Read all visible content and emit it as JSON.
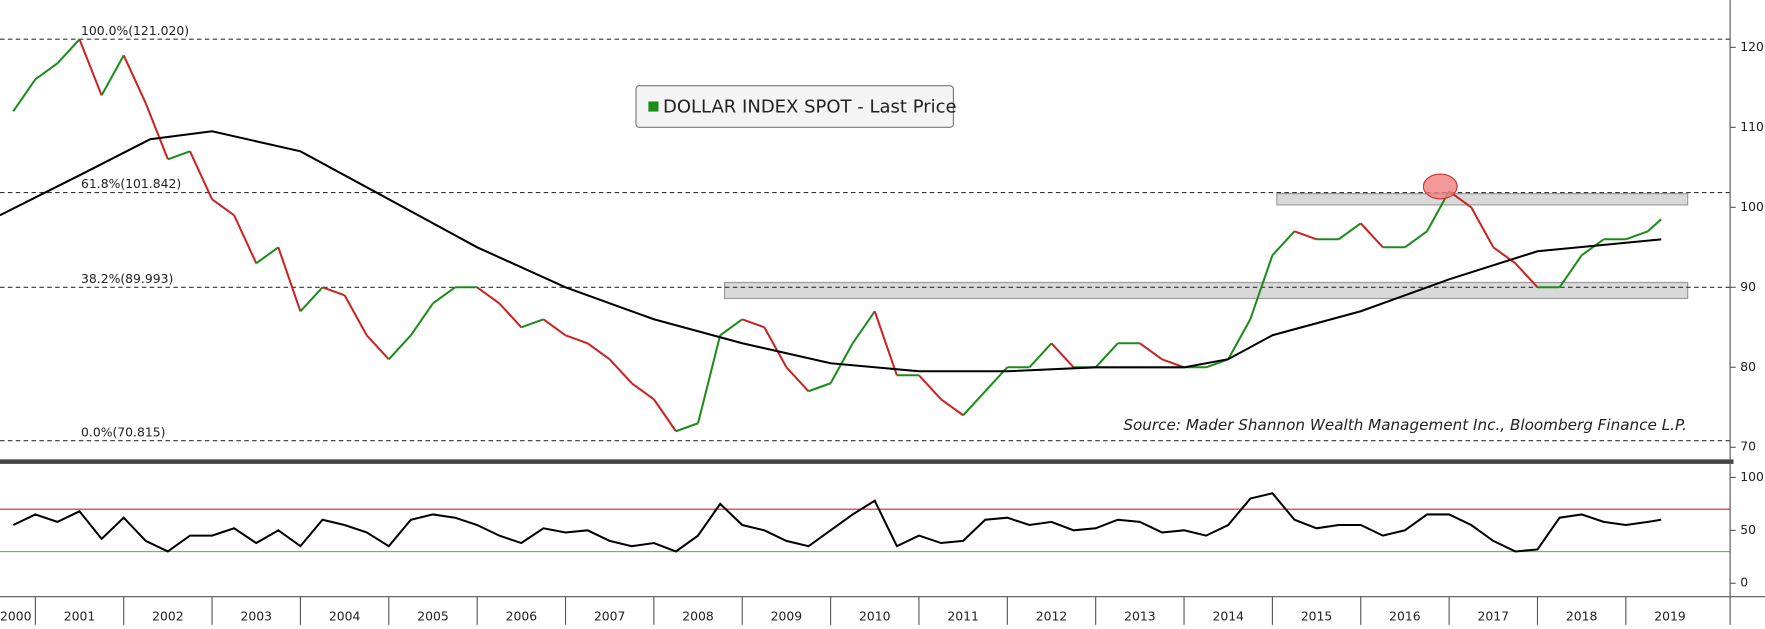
{
  "chart_data": [
    {
      "type": "line",
      "legend": "DOLLAR INDEX SPOT - Last Price",
      "source": "Source: Mader Shannon Wealth Management Inc., Bloomberg Finance L.P.",
      "xlim": [
        2000.6,
        2020.18
      ],
      "ylim": [
        68.2,
        125.9
      ],
      "yticks": [
        70,
        80,
        90,
        100,
        110,
        120
      ],
      "series": [
        {
          "name": "DOLLAR INDEX SPOT - Last Price",
          "color": "#1a8c1a",
          "down_color": "#cc2222",
          "x": [
            2000.75,
            2001,
            2001.25,
            2001.5,
            2001.75,
            2002,
            2002.25,
            2002.5,
            2002.75,
            2003,
            2003.25,
            2003.5,
            2003.75,
            2004,
            2004.25,
            2004.5,
            2004.75,
            2005,
            2005.25,
            2005.5,
            2005.75,
            2006,
            2006.25,
            2006.5,
            2006.75,
            2007,
            2007.25,
            2007.5,
            2007.75,
            2008,
            2008.25,
            2008.5,
            2008.75,
            2009,
            2009.25,
            2009.5,
            2009.75,
            2010,
            2010.25,
            2010.5,
            2010.75,
            2011,
            2011.25,
            2011.5,
            2011.75,
            2012,
            2012.25,
            2012.5,
            2012.75,
            2013,
            2013.25,
            2013.5,
            2013.75,
            2014,
            2014.25,
            2014.5,
            2014.75,
            2015,
            2015.25,
            2015.5,
            2015.75,
            2016,
            2016.25,
            2016.5,
            2016.75,
            2017,
            2017.25,
            2017.5,
            2017.75,
            2018,
            2018.25,
            2018.5,
            2018.75,
            2019,
            2019.25,
            2019.4
          ],
          "values": [
            112,
            116,
            118,
            121,
            114,
            119,
            113,
            106,
            107,
            101,
            99,
            93,
            95,
            87,
            90,
            89,
            84,
            81,
            84,
            88,
            90,
            90,
            88,
            85,
            86,
            84,
            83,
            81,
            78,
            76,
            72,
            73,
            84,
            86,
            85,
            80,
            77,
            78,
            83,
            87,
            79,
            79,
            76,
            74,
            77,
            80,
            80,
            83,
            80,
            80,
            83,
            83,
            81,
            80,
            80,
            81,
            86,
            94,
            97,
            96,
            96,
            98,
            95,
            95,
            97,
            102,
            100,
            95,
            93,
            90,
            90,
            94,
            96,
            96,
            97,
            98.5
          ]
        },
        {
          "color": "#000000",
          "x": [
            2000.6,
            2001.5,
            2002.3,
            2003,
            2004,
            2005,
            2006,
            2007,
            2008,
            2009,
            2010,
            2011,
            2012,
            2013,
            2014,
            2014.5,
            2015,
            2016,
            2017,
            2018,
            2019.4
          ],
          "values": [
            99,
            104,
            108.5,
            109.5,
            107,
            101,
            95,
            90,
            86,
            83,
            80.5,
            79.5,
            79.5,
            80,
            80,
            81,
            84,
            87,
            91,
            94.5,
            96
          ]
        }
      ],
      "fib_levels": [
        {
          "label": "100.0%(121.020)",
          "value": 121.02
        },
        {
          "label": "61.8%(101.842)",
          "value": 101.842
        },
        {
          "label": "38.2%(89.993)",
          "value": 89.993
        },
        {
          "label": "0.0%(70.815)",
          "value": 70.815
        }
      ],
      "zones": [
        {
          "x": [
            2008.8,
            2019.7
          ],
          "y": [
            88.6,
            90.6
          ],
          "color": "#d9d9d9"
        },
        {
          "x": [
            2015.05,
            2019.7
          ],
          "y": [
            100.3,
            101.7
          ],
          "color": "#d9d9d9"
        }
      ],
      "highlight": {
        "x": 2016.9,
        "y": 102.6,
        "color": "#f08080"
      }
    },
    {
      "type": "line",
      "xlim": [
        2000.6,
        2020.18
      ],
      "ylim": [
        -10.6,
        112.8
      ],
      "yticks": [
        0,
        50,
        100
      ],
      "bands": [
        {
          "value": 70,
          "color": "#d62020"
        },
        {
          "value": 30,
          "color": "#33dd33"
        }
      ],
      "series": [
        {
          "color": "#000000",
          "x": [
            2000.75,
            2001,
            2001.25,
            2001.5,
            2001.75,
            2002,
            2002.25,
            2002.5,
            2002.75,
            2003,
            2003.25,
            2003.5,
            2003.75,
            2004,
            2004.25,
            2004.5,
            2004.75,
            2005,
            2005.25,
            2005.5,
            2005.75,
            2006,
            2006.25,
            2006.5,
            2006.75,
            2007,
            2007.25,
            2007.5,
            2007.75,
            2008,
            2008.25,
            2008.5,
            2008.75,
            2009,
            2009.25,
            2009.5,
            2009.75,
            2010,
            2010.25,
            2010.5,
            2010.75,
            2011,
            2011.25,
            2011.5,
            2011.75,
            2012,
            2012.25,
            2012.5,
            2012.75,
            2013,
            2013.25,
            2013.5,
            2013.75,
            2014,
            2014.25,
            2014.5,
            2014.75,
            2015,
            2015.25,
            2015.5,
            2015.75,
            2016,
            2016.25,
            2016.5,
            2016.75,
            2017,
            2017.25,
            2017.5,
            2017.75,
            2018,
            2018.25,
            2018.5,
            2018.75,
            2019,
            2019.25,
            2019.4
          ],
          "values": [
            55,
            65,
            58,
            68,
            42,
            62,
            40,
            30,
            45,
            45,
            52,
            38,
            50,
            35,
            60,
            55,
            48,
            35,
            60,
            65,
            62,
            55,
            45,
            38,
            52,
            48,
            50,
            40,
            35,
            38,
            30,
            45,
            75,
            55,
            50,
            40,
            35,
            50,
            65,
            78,
            35,
            45,
            38,
            40,
            60,
            62,
            55,
            58,
            50,
            52,
            60,
            58,
            48,
            50,
            45,
            55,
            80,
            85,
            60,
            52,
            55,
            55,
            45,
            50,
            65,
            65,
            55,
            40,
            30,
            32,
            62,
            65,
            58,
            55,
            58,
            60
          ]
        }
      ],
      "xticks": [
        {
          "value": 2000,
          "label": "2000"
        },
        {
          "value": 2001,
          "label": "2001"
        },
        {
          "value": 2002,
          "label": "2002"
        },
        {
          "value": 2003,
          "label": "2003"
        },
        {
          "value": 2004,
          "label": "2004"
        },
        {
          "value": 2005,
          "label": "2005"
        },
        {
          "value": 2006,
          "label": "2006"
        },
        {
          "value": 2007,
          "label": "2007"
        },
        {
          "value": 2008,
          "label": "2008"
        },
        {
          "value": 2009,
          "label": "2009"
        },
        {
          "value": 2010,
          "label": "2010"
        },
        {
          "value": 2011,
          "label": "2011"
        },
        {
          "value": 2012,
          "label": "2012"
        },
        {
          "value": 2013,
          "label": "2013"
        },
        {
          "value": 2014,
          "label": "2014"
        },
        {
          "value": 2015,
          "label": "2015"
        },
        {
          "value": 2016,
          "label": "2016"
        },
        {
          "value": 2017,
          "label": "2017"
        },
        {
          "value": 2018,
          "label": "2018"
        },
        {
          "value": 2019,
          "label": "2019"
        }
      ]
    }
  ]
}
